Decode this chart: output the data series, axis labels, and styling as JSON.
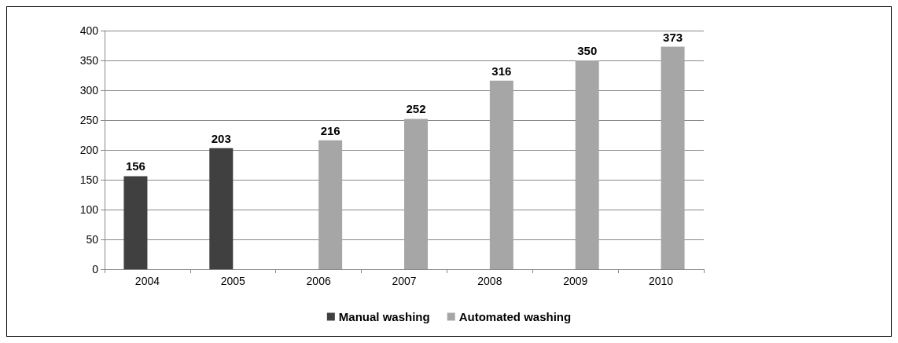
{
  "chart_data": {
    "type": "bar",
    "categories": [
      "2004",
      "2005",
      "2006",
      "2007",
      "2008",
      "2009",
      "2010"
    ],
    "series": [
      {
        "name": "Manual washing",
        "color": "#404040",
        "values": [
          156,
          203,
          null,
          null,
          null,
          null,
          null
        ]
      },
      {
        "name": "Automated washing",
        "color": "#a6a6a6",
        "values": [
          null,
          null,
          216,
          252,
          316,
          350,
          373
        ]
      }
    ],
    "ylim": [
      0,
      400
    ],
    "yticks": [
      0,
      50,
      100,
      150,
      200,
      250,
      300,
      350,
      400
    ],
    "grid": "y",
    "legend": "bottom",
    "data_labels": true
  }
}
